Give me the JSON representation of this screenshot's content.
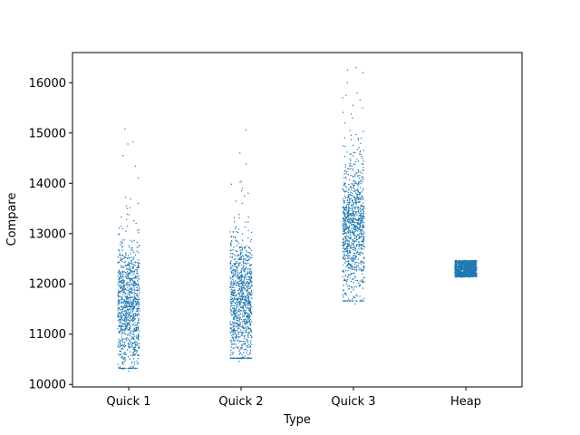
{
  "chart_data": {
    "type": "scatter",
    "style": "strip plot (jittered points per category)",
    "title": "",
    "xlabel": "Type",
    "ylabel": "Compare",
    "categories": [
      "Quick 1",
      "Quick 2",
      "Quick 3",
      "Heap"
    ],
    "ylim": [
      9950,
      16600
    ],
    "yticks": [
      10000,
      11000,
      12000,
      13000,
      14000,
      15000,
      16000
    ],
    "grid": false,
    "legend": "none",
    "point_color": "#1f77b4",
    "points_per_category": 1000,
    "series": [
      {
        "category": "Quick 1",
        "min": 10260,
        "max": 15080,
        "median": 11550,
        "q1": 11200,
        "q3": 11950,
        "outliers": [
          15080,
          14820,
          14780,
          14550,
          14340,
          14110,
          13720,
          13600,
          13550,
          13500,
          10420,
          10350,
          10300,
          10260
        ]
      },
      {
        "category": "Quick 2",
        "min": 10460,
        "max": 15060,
        "median": 11700,
        "q1": 11350,
        "q3": 12100,
        "outliers": [
          15060,
          14600,
          14020,
          13980,
          13900,
          13850,
          13800,
          13750,
          13600,
          10600,
          10460
        ]
      },
      {
        "category": "Quick 3",
        "min": 11600,
        "max": 16300,
        "median": 13100,
        "q1": 12700,
        "q3": 13550,
        "outliers": [
          16300,
          16250,
          16200,
          16000,
          15800,
          15750,
          15700,
          15550,
          15500,
          15300,
          15200,
          15050,
          11600
        ]
      },
      {
        "category": "Heap",
        "min": 12150,
        "max": 12500,
        "median": 12300,
        "q1": 12250,
        "q3": 12350,
        "outliers": []
      }
    ]
  }
}
